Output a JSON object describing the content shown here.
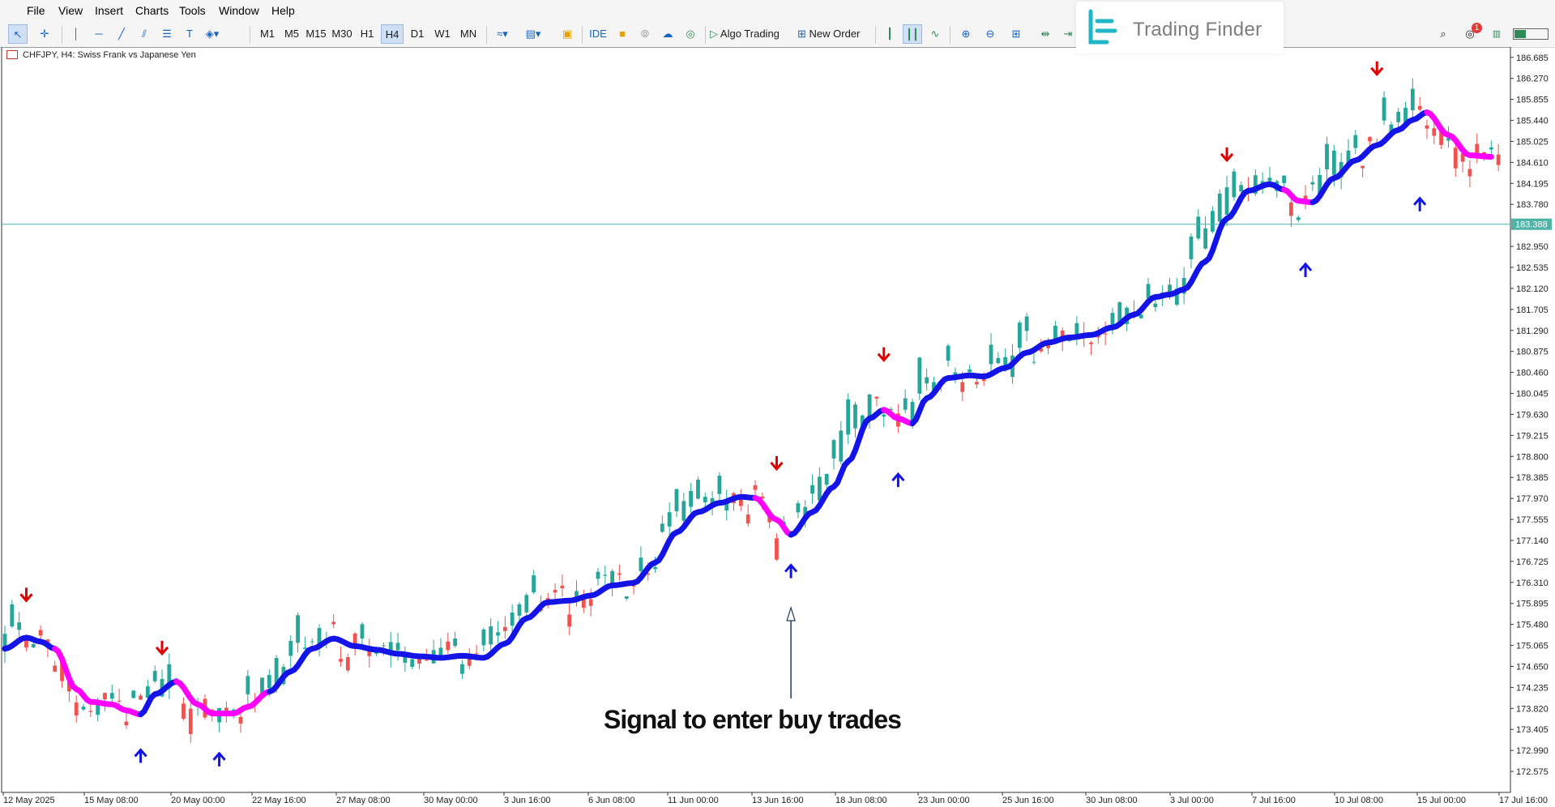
{
  "menu": [
    "File",
    "View",
    "Insert",
    "Charts",
    "Tools",
    "Window",
    "Help"
  ],
  "toolbar": {
    "timeframes": [
      "M1",
      "M5",
      "M15",
      "M30",
      "H1",
      "H4",
      "D1",
      "W1",
      "MN"
    ],
    "active_timeframe": "H4",
    "ide_label": "IDE",
    "algo_label": "Algo Trading",
    "new_order_label": "New Order",
    "notification_count": "1"
  },
  "logo": {
    "text": "Trading Finder",
    "color": "#1fb7c8"
  },
  "chart": {
    "symbol_label": "CHFJPY, H4:  Swiss Frank vs Japanese Yen",
    "current_price": "183.388",
    "annotation": "Signal to enter buy trades",
    "colors": {
      "up": "#26a69a",
      "down": "#ef5350",
      "trend_up": "#1414e6",
      "trend_down": "#ff00ff",
      "buy_arrow": "#1414e6",
      "sell_arrow": "#e00000",
      "hline": "#4fb3a8"
    }
  },
  "chart_data": {
    "type": "line",
    "title": "",
    "symbol": "CHFJPY",
    "timeframe": "H4",
    "xlabel": "",
    "ylabel": "",
    "ylim": [
      172.16,
      186.89
    ],
    "y_ticks": [
      186.685,
      186.27,
      185.855,
      185.44,
      185.025,
      184.61,
      184.195,
      183.78,
      182.95,
      182.535,
      182.12,
      181.705,
      181.29,
      180.875,
      180.46,
      180.045,
      179.63,
      179.215,
      178.8,
      178.385,
      177.97,
      177.555,
      177.14,
      176.725,
      176.31,
      175.895,
      175.48,
      175.065,
      174.65,
      174.235,
      173.82,
      173.405,
      172.99,
      172.575
    ],
    "x_labels": [
      "12 May 2025",
      "15 May 08:00",
      "20 May 00:00",
      "22 May 16:00",
      "27 May 08:00",
      "30 May 00:00",
      "3 Jun 16:00",
      "6 Jun 08:00",
      "11 Jun 00:00",
      "13 Jun 16:00",
      "18 Jun 08:00",
      "23 Jun 00:00",
      "25 Jun 16:00",
      "30 Jun 08:00",
      "3 Jul 00:00",
      "7 Jul 16:00",
      "10 Jul 08:00",
      "15 Jul 00:00",
      "17 Jul 16:00"
    ],
    "current_price": 183.388,
    "trend_line": {
      "points": [
        [
          0,
          175.0
        ],
        [
          3,
          175.22
        ],
        [
          5,
          175.14
        ],
        [
          7,
          175.0
        ],
        [
          10,
          174.2
        ],
        [
          12,
          173.95
        ],
        [
          15,
          173.9
        ],
        [
          17,
          173.78
        ],
        [
          19,
          173.7
        ],
        [
          21,
          174.1
        ],
        [
          24,
          174.35
        ],
        [
          27,
          173.9
        ],
        [
          29,
          173.72
        ],
        [
          32,
          173.72
        ],
        [
          34,
          173.85
        ],
        [
          37,
          174.15
        ],
        [
          40,
          174.55
        ],
        [
          43,
          175.0
        ],
        [
          46,
          175.2
        ],
        [
          49,
          175.05
        ],
        [
          52,
          174.98
        ],
        [
          55,
          174.9
        ],
        [
          58,
          174.85
        ],
        [
          61,
          174.82
        ],
        [
          64,
          174.86
        ],
        [
          67,
          174.82
        ],
        [
          70,
          175.1
        ],
        [
          73,
          175.6
        ],
        [
          76,
          175.92
        ],
        [
          79,
          175.95
        ],
        [
          82,
          176.05
        ],
        [
          85,
          176.25
        ],
        [
          88,
          176.3
        ],
        [
          91,
          176.7
        ],
        [
          94,
          177.3
        ],
        [
          97,
          177.7
        ],
        [
          100,
          177.88
        ],
        [
          103,
          178.0
        ],
        [
          105,
          177.98
        ],
        [
          108,
          177.55
        ],
        [
          110,
          177.25
        ],
        [
          113,
          177.7
        ],
        [
          116,
          178.2
        ],
        [
          118,
          178.7
        ],
        [
          121,
          179.55
        ],
        [
          123,
          179.72
        ],
        [
          125,
          179.55
        ],
        [
          127,
          179.45
        ],
        [
          129,
          179.95
        ],
        [
          132,
          180.35
        ],
        [
          135,
          180.4
        ],
        [
          137,
          180.38
        ],
        [
          140,
          180.55
        ],
        [
          143,
          180.85
        ],
        [
          146,
          181.05
        ],
        [
          149,
          181.15
        ],
        [
          152,
          181.2
        ],
        [
          155,
          181.35
        ],
        [
          158,
          181.6
        ],
        [
          161,
          181.95
        ],
        [
          163,
          182.0
        ],
        [
          165,
          182.1
        ],
        [
          168,
          182.65
        ],
        [
          171,
          183.5
        ],
        [
          174,
          184.05
        ],
        [
          177,
          184.18
        ],
        [
          179,
          184.07
        ],
        [
          181,
          183.85
        ],
        [
          183,
          183.82
        ],
        [
          186,
          184.3
        ],
        [
          189,
          184.65
        ],
        [
          192,
          184.95
        ],
        [
          195,
          185.25
        ],
        [
          197,
          185.45
        ],
        [
          199,
          185.6
        ],
        [
          202,
          185.15
        ],
        [
          205,
          184.75
        ],
        [
          208,
          184.72
        ]
      ],
      "down_segments": [
        [
          7,
          19
        ],
        [
          24,
          37
        ],
        [
          105,
          110
        ],
        [
          123,
          127
        ],
        [
          179,
          183
        ],
        [
          199,
          208
        ]
      ]
    },
    "signals": {
      "buy": [
        [
          19,
          173.0
        ],
        [
          30,
          172.93
        ],
        [
          110,
          176.65
        ],
        [
          125,
          178.45
        ],
        [
          182,
          182.6
        ],
        [
          198,
          183.9
        ]
      ],
      "sell": [
        [
          3,
          175.95
        ],
        [
          22,
          174.9
        ],
        [
          108,
          178.55
        ],
        [
          123,
          180.7
        ],
        [
          171,
          184.65
        ],
        [
          192,
          186.35
        ]
      ]
    }
  }
}
